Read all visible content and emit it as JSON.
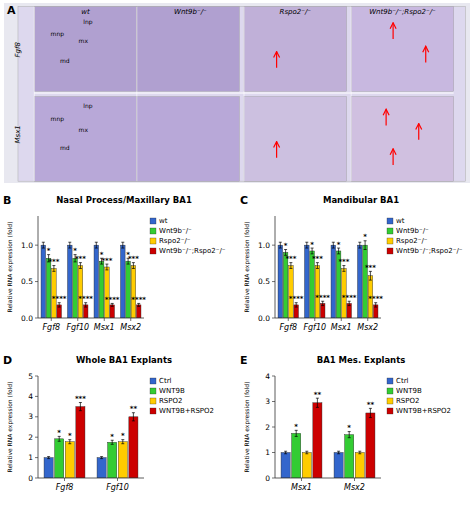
{
  "chart_data": [
    {
      "type": "image",
      "panel_label": "A",
      "column_labels": [
        "wt",
        "Wnt9b⁻/⁻",
        "Rspo2⁻/⁻",
        "Wnt9b⁻/⁻;Rspo2⁻/⁻"
      ],
      "row_labels": [
        "Fgf8",
        "Msx1"
      ],
      "annotations": [
        [
          "mnp",
          "lnp",
          "mx",
          "md"
        ],
        [
          "mnp",
          "lnp",
          "mx",
          "md"
        ]
      ]
    },
    {
      "type": "bar",
      "panel_label": "B",
      "title": "Nasal Process/Maxillary BA1",
      "y_label": "Relative RNA expression (fold)",
      "categories": [
        "Fgf8",
        "Fgf10",
        "Msx1",
        "Msx2"
      ],
      "series": [
        {
          "name": "wt",
          "color": "#3366cc",
          "values": [
            1.0,
            1.0,
            1.0,
            1.0
          ],
          "errors": [
            0.04,
            0.04,
            0.04,
            0.04
          ]
        },
        {
          "name": "Wnt9b⁻/⁻",
          "color": "#33cc33",
          "values": [
            0.82,
            0.82,
            0.78,
            0.78
          ],
          "errors": [
            0.05,
            0.05,
            0.04,
            0.04
          ],
          "annotations": [
            "*",
            "*",
            "*",
            "*"
          ]
        },
        {
          "name": "Rspo2⁻/⁻",
          "color": "#ffcc00",
          "values": [
            0.68,
            0.72,
            0.7,
            0.72
          ],
          "errors": [
            0.04,
            0.04,
            0.04,
            0.04
          ],
          "annotations": [
            "***",
            "***",
            "***",
            "***"
          ]
        },
        {
          "name": "Wnt9b⁻/⁻;Rspo2⁻/⁻",
          "color": "#cc0000",
          "values": [
            0.18,
            0.18,
            0.18,
            0.18
          ],
          "errors": [
            0.03,
            0.03,
            0.02,
            0.02
          ],
          "annotations": [
            "****",
            "****",
            "****",
            "****"
          ]
        }
      ],
      "ylim": [
        0,
        1.4
      ],
      "yticks": [
        {
          "value": 0,
          "label": "0.0"
        },
        0.5,
        {
          "value": 1,
          "label": "1.0"
        }
      ],
      "legend": "upper right",
      "grid": false
    },
    {
      "type": "bar",
      "panel_label": "C",
      "title": "Mandibular BA1",
      "y_label": "Relative RNA expression (fold)",
      "categories": [
        "Fgf8",
        "Fgf10",
        "Msx1",
        "Msx2"
      ],
      "series": [
        {
          "name": "wt",
          "color": "#3366cc",
          "values": [
            1.0,
            1.0,
            1.0,
            1.0
          ],
          "errors": [
            0.04,
            0.04,
            0.04,
            0.04
          ]
        },
        {
          "name": "Wnt9b⁻/⁻",
          "color": "#33cc33",
          "values": [
            0.9,
            0.92,
            0.92,
            1.0
          ],
          "errors": [
            0.04,
            0.04,
            0.04,
            0.06
          ],
          "annotations": [
            "*",
            "*",
            "*",
            "*"
          ]
        },
        {
          "name": "Rspo2⁻/⁻",
          "color": "#ffcc00",
          "values": [
            0.72,
            0.72,
            0.68,
            0.58
          ],
          "errors": [
            0.04,
            0.04,
            0.04,
            0.06
          ],
          "annotations": [
            "***",
            "***",
            "***",
            "***"
          ]
        },
        {
          "name": "Wnt9b⁻/⁻;Rspo2⁻/⁻",
          "color": "#cc0000",
          "values": [
            0.18,
            0.2,
            0.2,
            0.18
          ],
          "errors": [
            0.03,
            0.03,
            0.03,
            0.03
          ],
          "annotations": [
            "****",
            "****",
            "****",
            "****"
          ]
        }
      ],
      "ylim": [
        0,
        1.4
      ],
      "yticks": [
        {
          "value": 0,
          "label": "0.0"
        },
        0.5,
        {
          "value": 1,
          "label": "1.0"
        }
      ],
      "legend": "upper right",
      "grid": false
    },
    {
      "type": "bar",
      "panel_label": "D",
      "title": "Whole BA1 Explants",
      "y_label": "Relative RNA expression (fold)",
      "categories": [
        "Fgf8",
        "Fgf10"
      ],
      "series": [
        {
          "name": "Ctrl",
          "color": "#3366cc",
          "values": [
            1.0,
            1.0
          ],
          "errors": [
            0.05,
            0.05
          ]
        },
        {
          "name": "WNT9B",
          "color": "#33cc33",
          "values": [
            1.92,
            1.75
          ],
          "errors": [
            0.12,
            0.1
          ],
          "annotations": [
            "*",
            "*"
          ]
        },
        {
          "name": "RSPO2",
          "color": "#ffcc00",
          "values": [
            1.78,
            1.78
          ],
          "errors": [
            0.1,
            0.1
          ],
          "annotations": [
            "*",
            "*"
          ]
        },
        {
          "name": "WNT9B+RSPO2",
          "color": "#cc0000",
          "values": [
            3.5,
            3.0
          ],
          "errors": [
            0.2,
            0.2
          ],
          "annotations": [
            "***",
            "**"
          ]
        }
      ],
      "ylim": [
        0,
        5
      ],
      "yticks": [
        0,
        1,
        2,
        3,
        4,
        5
      ],
      "legend": "upper right",
      "grid": false
    },
    {
      "type": "bar",
      "panel_label": "E",
      "title": "BA1 Mes. Explants",
      "y_label": "Relative RNA expression (fold)",
      "categories": [
        "Msx1",
        "Msx2"
      ],
      "series": [
        {
          "name": "Ctrl",
          "color": "#3366cc",
          "values": [
            1.0,
            1.0
          ],
          "errors": [
            0.05,
            0.05
          ]
        },
        {
          "name": "WNT9B",
          "color": "#33cc33",
          "values": [
            1.75,
            1.7
          ],
          "errors": [
            0.12,
            0.12
          ],
          "annotations": [
            "*",
            "*"
          ]
        },
        {
          "name": "RSPO2",
          "color": "#ffcc00",
          "values": [
            1.0,
            1.0
          ],
          "errors": [
            0.05,
            0.05
          ],
          "annotations": [
            null,
            null
          ]
        },
        {
          "name": "WNT9B+RSPO2",
          "color": "#cc0000",
          "values": [
            2.95,
            2.55
          ],
          "errors": [
            0.18,
            0.18
          ],
          "annotations": [
            "**",
            "**"
          ]
        }
      ],
      "ylim": [
        0,
        4
      ],
      "yticks": [
        0,
        1,
        2,
        3,
        4
      ],
      "legend": "upper right",
      "grid": false
    }
  ]
}
